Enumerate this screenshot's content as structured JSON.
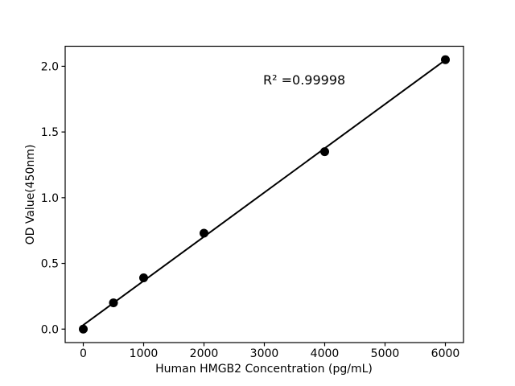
{
  "chart_data": {
    "type": "scatter",
    "title": "",
    "xlabel": "Human HMGB2 Concentration (pg/mL)",
    "ylabel": "OD Value(450nm)",
    "annotation": "R² =0.99998",
    "x": [
      0,
      500,
      1000,
      2000,
      4000,
      6000
    ],
    "y": [
      0.0,
      0.2,
      0.39,
      0.73,
      1.35,
      2.05
    ],
    "fit_line": {
      "x1": 0,
      "y1": 0.031,
      "x2": 6000,
      "y2": 2.048
    },
    "xlim": [
      -300,
      6300
    ],
    "ylim": [
      -0.1025,
      2.1525
    ],
    "xticks": [
      "0",
      "1000",
      "2000",
      "3000",
      "4000",
      "5000",
      "6000"
    ],
    "yticks": [
      "0.0",
      "0.5",
      "1.0",
      "1.5",
      "2.0"
    ],
    "grid": false,
    "legend": null,
    "marker_color": "#000000",
    "line_color": "#000000",
    "axis_color": "#000000",
    "background": "#ffffff"
  }
}
